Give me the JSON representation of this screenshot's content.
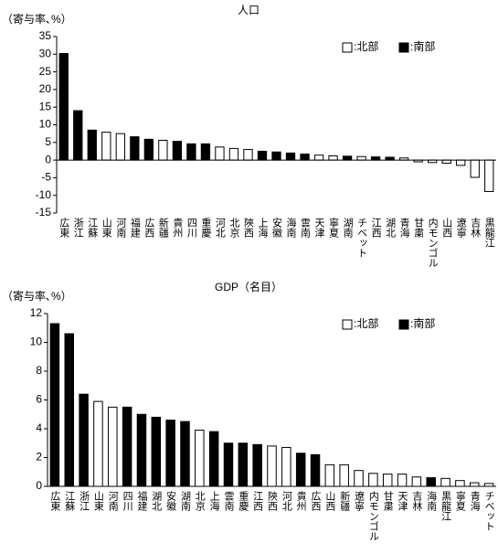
{
  "chart_data": [
    {
      "type": "bar",
      "title": "人口",
      "y_label": "（寄与率､%）",
      "categories": [
        "広東",
        "浙江",
        "江蘇",
        "山東",
        "河南",
        "福建",
        "広西",
        "新疆",
        "貴州",
        "四川",
        "重慶",
        "河北",
        "北京",
        "陝西",
        "上海",
        "安徽",
        "海南",
        "雲南",
        "天津",
        "寧夏",
        "湖南",
        "チベット",
        "江西",
        "湖北",
        "青海",
        "甘粛",
        "内モンゴル",
        "山西",
        "遼寧",
        "吉林",
        "黒龍江"
      ],
      "series": [
        {
          "name": ":北部",
          "color": "#ffffff",
          "values": [
            null,
            null,
            null,
            7.9,
            7.5,
            null,
            null,
            5.6,
            null,
            null,
            null,
            3.7,
            3.3,
            3.0,
            null,
            null,
            null,
            null,
            1.4,
            1.2,
            null,
            1.0,
            null,
            null,
            0.6,
            -0.5,
            -0.7,
            -0.9,
            -1.5,
            -4.9,
            -8.9
          ]
        },
        {
          "name": ":南部",
          "color": "#000000",
          "values": [
            30.2,
            14.0,
            8.5,
            null,
            null,
            6.6,
            5.9,
            null,
            5.3,
            4.6,
            4.6,
            null,
            null,
            null,
            2.5,
            2.3,
            2.0,
            1.7,
            null,
            null,
            1.1,
            null,
            0.9,
            0.8,
            null,
            null,
            null,
            null,
            null,
            null,
            null
          ]
        }
      ],
      "ylim": [
        -15,
        35
      ],
      "yticks": [
        -15,
        -10,
        -5,
        0,
        5,
        10,
        15,
        20,
        25,
        30,
        35
      ],
      "grid": false
    },
    {
      "type": "bar",
      "title": "GDP（名目）",
      "y_label": "（寄与率､%）",
      "categories": [
        "広東",
        "江蘇",
        "浙江",
        "山東",
        "河南",
        "四川",
        "福建",
        "湖北",
        "安徽",
        "湖南",
        "北京",
        "上海",
        "雲南",
        "重慶",
        "江西",
        "陝西",
        "河北",
        "貴州",
        "広西",
        "山西",
        "新疆",
        "遼寧",
        "内モンゴル",
        "甘粛",
        "天津",
        "吉林",
        "海南",
        "黒龍江",
        "寧夏",
        "青海",
        "チベット"
      ],
      "series": [
        {
          "name": ":北部",
          "color": "#ffffff",
          "values": [
            null,
            null,
            null,
            5.9,
            5.5,
            null,
            null,
            null,
            null,
            null,
            3.9,
            null,
            null,
            null,
            null,
            2.8,
            2.7,
            null,
            null,
            1.5,
            1.5,
            1.1,
            0.9,
            0.85,
            0.85,
            0.65,
            null,
            0.55,
            0.4,
            0.25,
            0.2
          ]
        },
        {
          "name": ":南部",
          "color": "#000000",
          "values": [
            11.3,
            10.6,
            6.4,
            null,
            null,
            5.5,
            5.0,
            4.8,
            4.6,
            4.5,
            null,
            3.8,
            3.0,
            3.0,
            2.9,
            null,
            null,
            2.3,
            2.2,
            null,
            null,
            null,
            null,
            null,
            null,
            null,
            0.6,
            null,
            null,
            null,
            null
          ]
        }
      ],
      "ylim": [
        0,
        12
      ],
      "yticks": [
        0,
        2,
        4,
        6,
        8,
        10,
        12
      ],
      "grid": false
    }
  ]
}
